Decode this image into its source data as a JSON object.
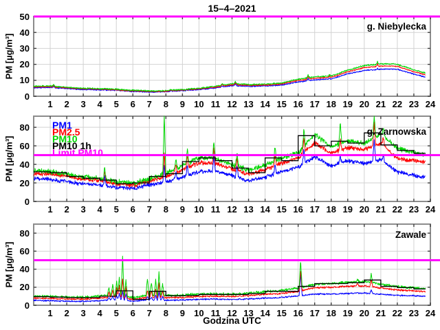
{
  "chart_data": {
    "type": "line",
    "title": "15–4–2021",
    "xlabel": "Godzina UTC",
    "ylabel": "PM [µg/m³]",
    "x_range": [
      0,
      24
    ],
    "x_ticks": [
      1,
      2,
      3,
      4,
      5,
      6,
      7,
      8,
      9,
      10,
      11,
      12,
      13,
      14,
      15,
      16,
      17,
      18,
      19,
      20,
      21,
      22,
      23,
      24
    ],
    "data_end_hour": 23.7,
    "grid": true,
    "legend": {
      "position": "top-left-of-middle-panel",
      "items": [
        {
          "label": "PM1",
          "color": "#0000ff"
        },
        {
          "label": "PM2.5",
          "color": "#ff0000"
        },
        {
          "label": "PM10",
          "color": "#00d500"
        },
        {
          "label": "PM10 1h",
          "color": "#000000"
        },
        {
          "label": "Limit PM10",
          "color": "#ff00ff"
        }
      ]
    },
    "limit": {
      "label": "Limit PM10",
      "value": 50,
      "color": "#ff00ff"
    },
    "colors": {
      "pm1": "#0000ff",
      "pm25": "#ff0000",
      "pm10": "#00d500",
      "pm10_1h": "#000000",
      "limit": "#ff00ff",
      "grid": "#d2d2d2",
      "frame": "#8c8c8c",
      "tick": "#404040"
    },
    "panels": [
      {
        "site": "g. Niebylecka",
        "ylim": [
          0,
          50
        ],
        "y_ticks": [
          0,
          10,
          20,
          30,
          40,
          50
        ],
        "pm10_hourly": [
          6.2,
          6.4,
          5.5,
          4.9,
          4.7,
          4.3,
          3.6,
          3.3,
          3.4,
          4.1,
          4.9,
          6.2,
          7.8,
          7.3,
          7.4,
          8.2,
          10.6,
          12.1,
          12.6,
          16.2,
          19.2,
          20.2,
          20.0,
          16.5,
          13.5
        ],
        "pm25_hourly": [
          5.8,
          6.0,
          5.2,
          4.6,
          4.4,
          4.0,
          3.3,
          3.0,
          3.1,
          3.8,
          4.6,
          5.7,
          7.2,
          6.8,
          6.9,
          7.7,
          9.9,
          11.3,
          11.8,
          15.3,
          18.0,
          18.9,
          18.8,
          15.4,
          12.6
        ],
        "pm1_hourly": [
          5.3,
          5.5,
          4.8,
          4.2,
          4.0,
          3.7,
          3.0,
          2.7,
          2.8,
          3.5,
          4.2,
          5.2,
          6.6,
          6.2,
          6.3,
          7.0,
          9.0,
          10.3,
          10.8,
          14.0,
          16.2,
          16.9,
          17.0,
          13.9,
          11.2
        ],
        "pm10_1h_hourly": null,
        "spikes_hour_g_r_b": [
          [
            1.2,
            7.3,
            6.8,
            6.3
          ],
          [
            8.3,
            4.5,
            4.1,
            3.7
          ],
          [
            11.4,
            8.0,
            7.4,
            6.7
          ],
          [
            12.2,
            9.0,
            8.3,
            7.6
          ],
          [
            16.6,
            13.2,
            12.3,
            11.0
          ],
          [
            17.9,
            13.5,
            12.6,
            11.3
          ],
          [
            20.8,
            21.6,
            20.2,
            17.4
          ]
        ],
        "noise_amp_g_r_b": [
          0.55,
          0.45,
          0.45
        ]
      },
      {
        "site": "g. Zarnowska",
        "ylim": [
          0,
          92
        ],
        "y_ticks": [
          0,
          20,
          40,
          60,
          80
        ],
        "pm10_hourly": [
          33,
          32,
          29,
          26,
          25,
          21,
          19,
          24,
          30,
          38,
          47,
          46,
          39,
          33,
          38,
          46,
          52,
          72,
          58,
          65,
          62,
          72,
          57,
          52,
          49
        ],
        "pm25_hourly": [
          30,
          30,
          27,
          24,
          23,
          19,
          17,
          22,
          27,
          34,
          42,
          41,
          35,
          29,
          34,
          41,
          47,
          63,
          52,
          58,
          56,
          63,
          46,
          44,
          42
        ],
        "pm1_hourly": [
          25,
          24,
          21,
          19,
          18,
          15,
          14,
          18,
          21,
          26,
          32,
          33,
          28,
          22,
          26,
          32,
          37,
          48,
          38,
          44,
          41,
          45,
          32,
          28,
          25
        ],
        "pm10_1h_hourly": [
          32,
          31,
          27,
          25,
          23,
          19,
          20,
          27,
          30,
          43,
          47,
          44,
          36,
          31,
          47,
          44,
          71,
          60,
          65,
          63,
          74,
          61,
          55,
          52
        ],
        "spikes_hour_g_r_b": [
          [
            4.3,
            36,
            32,
            27
          ],
          [
            7.9,
            92,
            50,
            38
          ],
          [
            8.6,
            45,
            40,
            32
          ],
          [
            9.3,
            55,
            48,
            38
          ],
          [
            10.9,
            62,
            56,
            48
          ],
          [
            12.3,
            52,
            46,
            38
          ],
          [
            14.6,
            58,
            51,
            40
          ],
          [
            16.35,
            78,
            70,
            56
          ],
          [
            17.3,
            60,
            52,
            42
          ],
          [
            18.55,
            87,
            68,
            50
          ],
          [
            20.6,
            92,
            84,
            66
          ],
          [
            21.15,
            80,
            70,
            50
          ]
        ],
        "noise_amp_g_r_b": [
          3.2,
          2.8,
          2.6
        ]
      },
      {
        "site": "Zawale",
        "ylim": [
          0,
          90
        ],
        "y_ticks": [
          0,
          20,
          40,
          60,
          80
        ],
        "pm10_hourly": [
          10,
          9.5,
          9,
          8.5,
          10,
          12,
          8,
          11,
          10.5,
          11,
          12,
          12.5,
          12,
          13,
          15,
          16,
          19,
          23,
          24,
          25,
          26,
          23,
          20.5,
          19,
          17.5
        ],
        "pm25_hourly": [
          8,
          7.5,
          7,
          6.8,
          7.8,
          9.5,
          6.5,
          8.8,
          8.3,
          8.8,
          9.8,
          10.3,
          9.8,
          10.8,
          12.3,
          13,
          15.5,
          19.5,
          20,
          21,
          21.5,
          19,
          17,
          16,
          14.5
        ],
        "pm1_hourly": [
          5.5,
          5,
          4.5,
          4.3,
          5,
          6.5,
          4.5,
          6,
          5.5,
          6,
          6.5,
          7,
          6.5,
          7,
          8,
          8.5,
          10.5,
          12.5,
          12.5,
          13,
          13.5,
          12,
          11,
          10.5,
          9.5
        ],
        "pm10_1h_hourly": [
          9.5,
          9,
          8.5,
          8.5,
          10,
          16,
          6.5,
          15.5,
          10.5,
          11,
          12,
          12,
          12,
          13,
          15.5,
          15.5,
          21,
          24,
          24,
          25,
          28,
          21,
          19.5,
          18
        ],
        "spikes_hour_g_r_b": [
          [
            4.55,
            20,
            15,
            9
          ],
          [
            4.78,
            23,
            17,
            10
          ],
          [
            5.02,
            27,
            20,
            11
          ],
          [
            5.18,
            31,
            22,
            13
          ],
          [
            5.38,
            55,
            30,
            16
          ],
          [
            5.58,
            28,
            20,
            12
          ],
          [
            6.88,
            30,
            17,
            10
          ],
          [
            7.12,
            25,
            16,
            9
          ],
          [
            7.38,
            28,
            18,
            11
          ],
          [
            7.58,
            37,
            25,
            15
          ],
          [
            7.8,
            24,
            16,
            10
          ],
          [
            16.15,
            50,
            40,
            36
          ],
          [
            19.6,
            28,
            24,
            14
          ],
          [
            20.42,
            34,
            28,
            17
          ]
        ],
        "noise_amp_g_r_b": [
          1.7,
          1.2,
          1.0
        ]
      }
    ]
  }
}
